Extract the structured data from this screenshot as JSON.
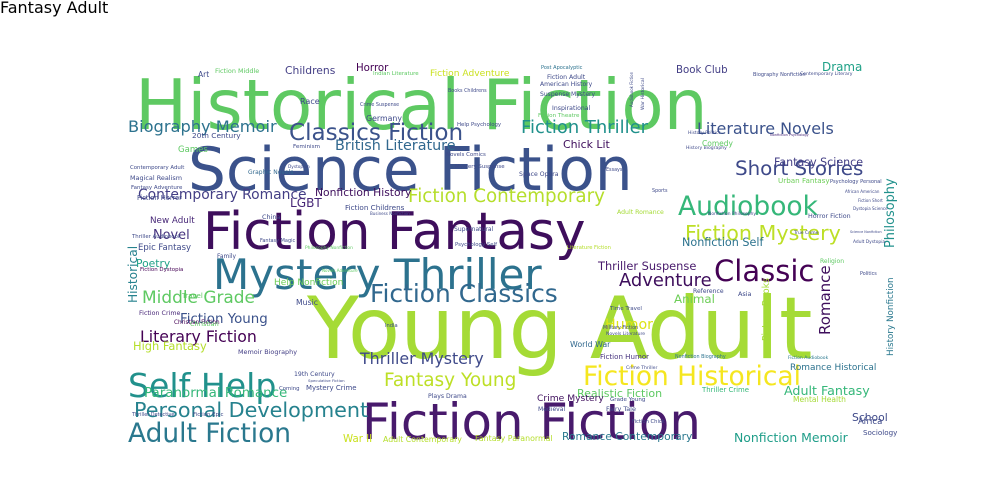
{
  "words": [
    {
      "text": "Young Adult",
      "color": "#a5db36"
    },
    {
      "text": "Historical Fiction",
      "color": "#5ec962"
    },
    {
      "text": "Science Fiction",
      "color": "#3b528b"
    },
    {
      "text": "Fiction Fantasy",
      "color": "#3e0e5c"
    },
    {
      "text": "Fiction Fiction",
      "color": "#481a6c"
    },
    {
      "text": "Mystery Thriller",
      "color": "#2c728e"
    },
    {
      "text": "Self Help",
      "color": "#21918c"
    },
    {
      "text": "Fiction Historical",
      "color": "#f5e61f"
    },
    {
      "text": "Audiobook",
      "color": "#35b779"
    },
    {
      "text": "Classic",
      "color": "#440154"
    },
    {
      "text": "Fiction Classics",
      "color": "#31688e"
    },
    {
      "text": "Classics Fiction",
      "color": "#3b528b"
    },
    {
      "text": "Fiction Mystery",
      "color": "#bddf26"
    },
    {
      "text": "Adult Fiction",
      "color": "#2a788e"
    },
    {
      "text": "Personal Development",
      "color": "#26828e"
    },
    {
      "text": "Fiction Contemporary",
      "color": "#b5de2b"
    },
    {
      "text": "Short Stories",
      "color": "#3e4989"
    },
    {
      "text": "Fiction Thriller",
      "color": "#21918c"
    },
    {
      "text": "Literature Novels",
      "color": "#3b528b"
    },
    {
      "text": "Literary Fiction",
      "color": "#440154"
    },
    {
      "text": "Fantasy Young",
      "color": "#bddf26"
    },
    {
      "text": "Middle Grade",
      "color": "#5ec962"
    },
    {
      "text": "Adult Fantasy",
      "color": "#35b779"
    },
    {
      "text": "Thriller Mystery",
      "color": "#3e4989"
    },
    {
      "text": "Paranormal Romance",
      "color": "#35b779"
    },
    {
      "text": "Fiction Young",
      "color": "#3b528b"
    },
    {
      "text": "Biography Memoir",
      "color": "#2c728e"
    },
    {
      "text": "British Literature",
      "color": "#31688e"
    },
    {
      "text": "Contemporary Romance",
      "color": "#433e85"
    },
    {
      "text": "Adventure",
      "color": "#3e0e5c"
    },
    {
      "text": "Humor",
      "color": "#dde318"
    },
    {
      "text": "Realistic Fiction",
      "color": "#5ec962"
    },
    {
      "text": "Romance Contemporary",
      "color": "#2a788e"
    },
    {
      "text": "Nonfiction Memoir",
      "color": "#1f9e89"
    },
    {
      "text": "Nonfiction Self",
      "color": "#2c728e"
    },
    {
      "text": "Thriller Suspense",
      "color": "#481a6c"
    },
    {
      "text": "Novel",
      "color": "#46327e"
    },
    {
      "text": "Poetry",
      "color": "#1fa187"
    },
    {
      "text": "High Fantasy",
      "color": "#b5de2b"
    },
    {
      "text": "Crime Mystery",
      "color": "#3e0e5c"
    },
    {
      "text": "Chick Lit",
      "color": "#3e0e5c"
    },
    {
      "text": "Romance",
      "color": "#3e0e5c"
    },
    {
      "text": "Philosophy",
      "color": "#21918c"
    },
    {
      "text": "Fantasy Science",
      "color": "#433e85"
    },
    {
      "text": "Nonfiction History",
      "color": "#3e0e5c"
    },
    {
      "text": "Childrens",
      "color": "#433e85"
    },
    {
      "text": "Horror",
      "color": "#440154"
    },
    {
      "text": "Drama",
      "color": "#1fa187"
    },
    {
      "text": "Book Club",
      "color": "#433e85"
    },
    {
      "text": "Epic Fantasy",
      "color": "#3e4989"
    },
    {
      "text": "New Adult",
      "color": "#482878"
    },
    {
      "text": "Fiction Crime",
      "color": "#482878"
    },
    {
      "text": "Memoir Biography",
      "color": "#433e85"
    },
    {
      "text": "Horror Fiction",
      "color": "#3e4989"
    },
    {
      "text": "Urban Fantasy",
      "color": "#6ece58"
    },
    {
      "text": "School",
      "color": "#3e4989"
    },
    {
      "text": "Mental Health",
      "color": "#a5db36"
    },
    {
      "text": "Thriller Crime",
      "color": "#35b779"
    },
    {
      "text": "History Nonfiction",
      "color": "#2a788e"
    },
    {
      "text": "Picture Books",
      "color": "#a5db36"
    },
    {
      "text": "World War",
      "color": "#31688e"
    },
    {
      "text": "Fiction Humor",
      "color": "#46327e"
    },
    {
      "text": "Fiction Adventure",
      "color": "#cae11f"
    },
    {
      "text": "Fiction Childrens",
      "color": "#3e4989"
    },
    {
      "text": "Adult Contemporary",
      "color": "#b5de2b"
    },
    {
      "text": "Fantasy Paranormal",
      "color": "#b5de2b"
    },
    {
      "text": "Nonfiction Psychology",
      "color": "#482878"
    },
    {
      "text": "LGBT",
      "color": "#482878"
    },
    {
      "text": "Help Nonfiction",
      "color": "#6ece58"
    },
    {
      "text": "Animal",
      "color": "#6ece58"
    },
    {
      "text": "Adult Romance",
      "color": "#a5db36"
    },
    {
      "text": "Historical",
      "color": "#26828e"
    },
    {
      "text": "Romance Historical",
      "color": "#2c728e"
    },
    {
      "text": "War II",
      "color": "#cae11f"
    },
    {
      "text": "Nonfiction Biography",
      "color": "#2c728e"
    },
    {
      "text": "Fiction Audiobook",
      "color": "#2a788e"
    },
    {
      "text": "Graphic Novels",
      "color": "#31688e"
    },
    {
      "text": "Magical Realism",
      "color": "#3e4989"
    },
    {
      "text": "Fiction Horror",
      "color": "#3e4989"
    },
    {
      "text": "Contemporary Adult",
      "color": "#3e4989"
    },
    {
      "text": "Fantasy Adventure",
      "color": "#3e4989"
    },
    {
      "text": "20th Century",
      "color": "#3e4989"
    },
    {
      "text": "Thriller Audiobook",
      "color": "#3e4989"
    },
    {
      "text": "Fiction Dystopia",
      "color": "#440154"
    },
    {
      "text": "Christian Fiction",
      "color": "#440154"
    },
    {
      "text": "Plays Drama",
      "color": "#3e4989"
    },
    {
      "text": "Fiction Epic",
      "color": "#3e4989"
    },
    {
      "text": "Thriller Detective",
      "color": "#3e4989"
    },
    {
      "text": "Mystery Crime",
      "color": "#3e4989"
    },
    {
      "text": "Speculative Fiction",
      "color": "#3e4989"
    },
    {
      "text": "19th Century",
      "color": "#3e4989"
    },
    {
      "text": "Fiction Middle",
      "color": "#5ec962"
    },
    {
      "text": "Indian Literature",
      "color": "#5ec962"
    },
    {
      "text": "Fiction Adult",
      "color": "#3e4989"
    },
    {
      "text": "American History",
      "color": "#3e4989"
    },
    {
      "text": "Suspense Mystery",
      "color": "#3e4989"
    },
    {
      "text": "Post Apocalyptic",
      "color": "#2c728e"
    },
    {
      "text": "Crime Suspense",
      "color": "#3e4989"
    },
    {
      "text": "Books Childrens",
      "color": "#3e4989"
    },
    {
      "text": "Inspirational",
      "color": "#3e4989"
    },
    {
      "text": "Fiction Theatre",
      "color": "#5ec962"
    },
    {
      "text": "Biography Nonfiction",
      "color": "#3e4989"
    },
    {
      "text": "Contemporary Literary",
      "color": "#3e4989"
    },
    {
      "text": "War Historical",
      "color": "#3e4989"
    },
    {
      "text": "Audiobook Fiction",
      "color": "#3e4989"
    },
    {
      "text": "History Politics",
      "color": "#3e4989"
    },
    {
      "text": "Help Psychology",
      "color": "#3e4989"
    },
    {
      "text": "Feminism",
      "color": "#3e4989"
    },
    {
      "text": "Mystery Suspense",
      "color": "#3e4989"
    },
    {
      "text": "Novels Comics",
      "color": "#3e4989"
    },
    {
      "text": "Space Opera",
      "color": "#3e4989"
    },
    {
      "text": "History Biography",
      "color": "#3e4989"
    },
    {
      "text": "Comedy",
      "color": "#5ec962"
    },
    {
      "text": "Essays",
      "color": "#3e4989"
    },
    {
      "text": "Sports",
      "color": "#3e4989"
    },
    {
      "text": "African American",
      "color": "#3e4989"
    },
    {
      "text": "Psychology Personal",
      "color": "#3e4989"
    },
    {
      "text": "Fiction Short",
      "color": "#3e4989"
    },
    {
      "text": "Dystopia Science",
      "color": "#3e4989"
    },
    {
      "text": "Nonfiction Philosophy",
      "color": "#3e4989"
    },
    {
      "text": "Science Nonfiction",
      "color": "#3e4989"
    },
    {
      "text": "Adult Dystopia",
      "color": "#3e4989"
    },
    {
      "text": "Religion",
      "color": "#5ec962"
    },
    {
      "text": "Politics",
      "color": "#3e4989"
    },
    {
      "text": "Literature Fiction",
      "color": "#b5de2b"
    },
    {
      "text": "Psychology Self",
      "color": "#3e4989"
    },
    {
      "text": "Philosophy Nonfiction",
      "color": "#5ec962"
    },
    {
      "text": "Supernatural",
      "color": "#3e4989"
    },
    {
      "text": "Business Nonfiction",
      "color": "#3e4989"
    },
    {
      "text": "Novels Literature",
      "color": "#3e4989"
    },
    {
      "text": "Military Fiction",
      "color": "#3e4989"
    },
    {
      "text": "Time Travel",
      "color": "#3e4989"
    },
    {
      "text": "Asia",
      "color": "#3e4989"
    },
    {
      "text": "Reference",
      "color": "#3e4989"
    },
    {
      "text": "True Crime",
      "color": "#3e4989"
    },
    {
      "text": "Family",
      "color": "#3e4989"
    },
    {
      "text": "Travel",
      "color": "#5ec962"
    },
    {
      "text": "Christian",
      "color": "#5ec962"
    },
    {
      "text": "Music",
      "color": "#3e4989"
    },
    {
      "text": "India",
      "color": "#3e4989"
    },
    {
      "text": "Fairy Tale",
      "color": "#3e4989"
    },
    {
      "text": "Grade Young",
      "color": "#3e4989"
    },
    {
      "text": "Fiction Chick",
      "color": "#3e4989"
    },
    {
      "text": "Medieval",
      "color": "#3e4989"
    },
    {
      "text": "Art",
      "color": "#3e4989"
    },
    {
      "text": "Games",
      "color": "#5ec962"
    },
    {
      "text": "Crime Thriller",
      "color": "#3e4989"
    },
    {
      "text": "Germany",
      "color": "#3e4989"
    },
    {
      "text": "Race",
      "color": "#3e4989"
    },
    {
      "text": "China",
      "color": "#3e4989"
    },
    {
      "text": "Fantasy Magic",
      "color": "#3e4989"
    },
    {
      "text": "Novels Adventure",
      "color": "#5ec962"
    },
    {
      "text": "Dystopian",
      "color": "#3e4989"
    },
    {
      "text": "Coming",
      "color": "#3e4989"
    },
    {
      "text": "Africa",
      "color": "#3e4989"
    },
    {
      "text": "Sociology",
      "color": "#3e4989"
    },
    {
      "text": "Fantasy Adult",
      "color": "#3e4989"
    }
  ]
}
